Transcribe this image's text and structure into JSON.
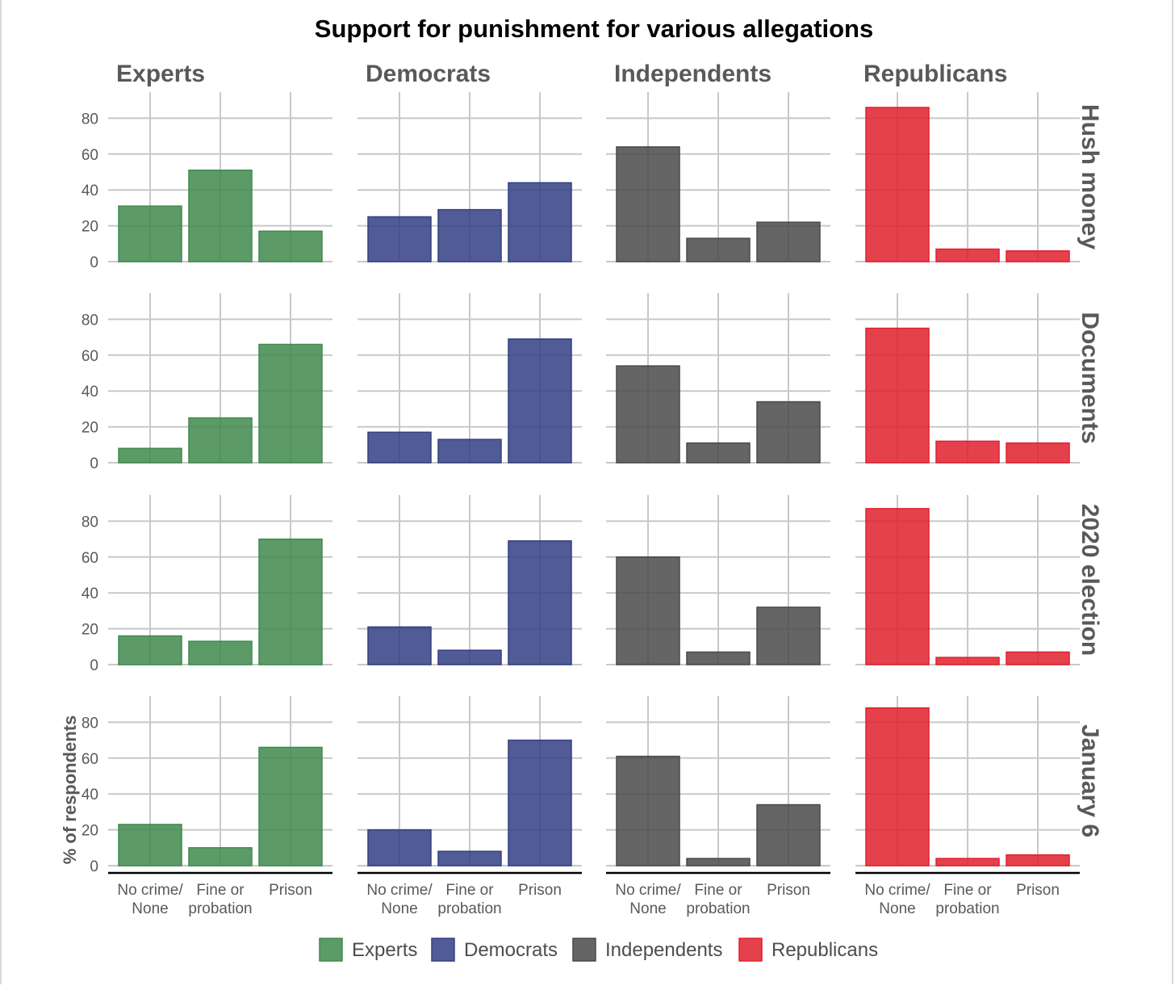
{
  "chart_data": {
    "type": "bar",
    "title": "Support for punishment for various allegations",
    "ylabel": "% of respondents",
    "xlabel": "",
    "ylim": [
      0,
      94
    ],
    "yticks": [
      0,
      20,
      40,
      60,
      80
    ],
    "grid": true,
    "legend_position": "bottom",
    "categories": [
      [
        "No crime/",
        "None"
      ],
      [
        "Fine or",
        "probation"
      ],
      [
        "Prison"
      ]
    ],
    "columns": [
      "Experts",
      "Democrats",
      "Independents",
      "Republicans"
    ],
    "rows": [
      "Hush money",
      "Documents",
      "2020 election",
      "January 6"
    ],
    "colors": {
      "Experts": "#3f8a4d",
      "Democrats": "#333f84",
      "Independents": "#4a4a4a",
      "Republicans": "#e0202e"
    },
    "series": [
      {
        "name": "Experts",
        "values": [
          [
            31,
            51,
            17
          ],
          [
            8,
            25,
            66
          ],
          [
            16,
            13,
            70
          ],
          [
            23,
            10,
            66
          ]
        ]
      },
      {
        "name": "Democrats",
        "values": [
          [
            25,
            29,
            44
          ],
          [
            17,
            13,
            69
          ],
          [
            21,
            8,
            69
          ],
          [
            20,
            8,
            70
          ]
        ]
      },
      {
        "name": "Independents",
        "values": [
          [
            64,
            13,
            22
          ],
          [
            54,
            11,
            34
          ],
          [
            60,
            7,
            32
          ],
          [
            61,
            4,
            34
          ]
        ]
      },
      {
        "name": "Republicans",
        "values": [
          [
            86,
            7,
            6
          ],
          [
            75,
            12,
            11
          ],
          [
            87,
            4,
            7
          ],
          [
            88,
            4,
            6
          ]
        ]
      }
    ]
  }
}
